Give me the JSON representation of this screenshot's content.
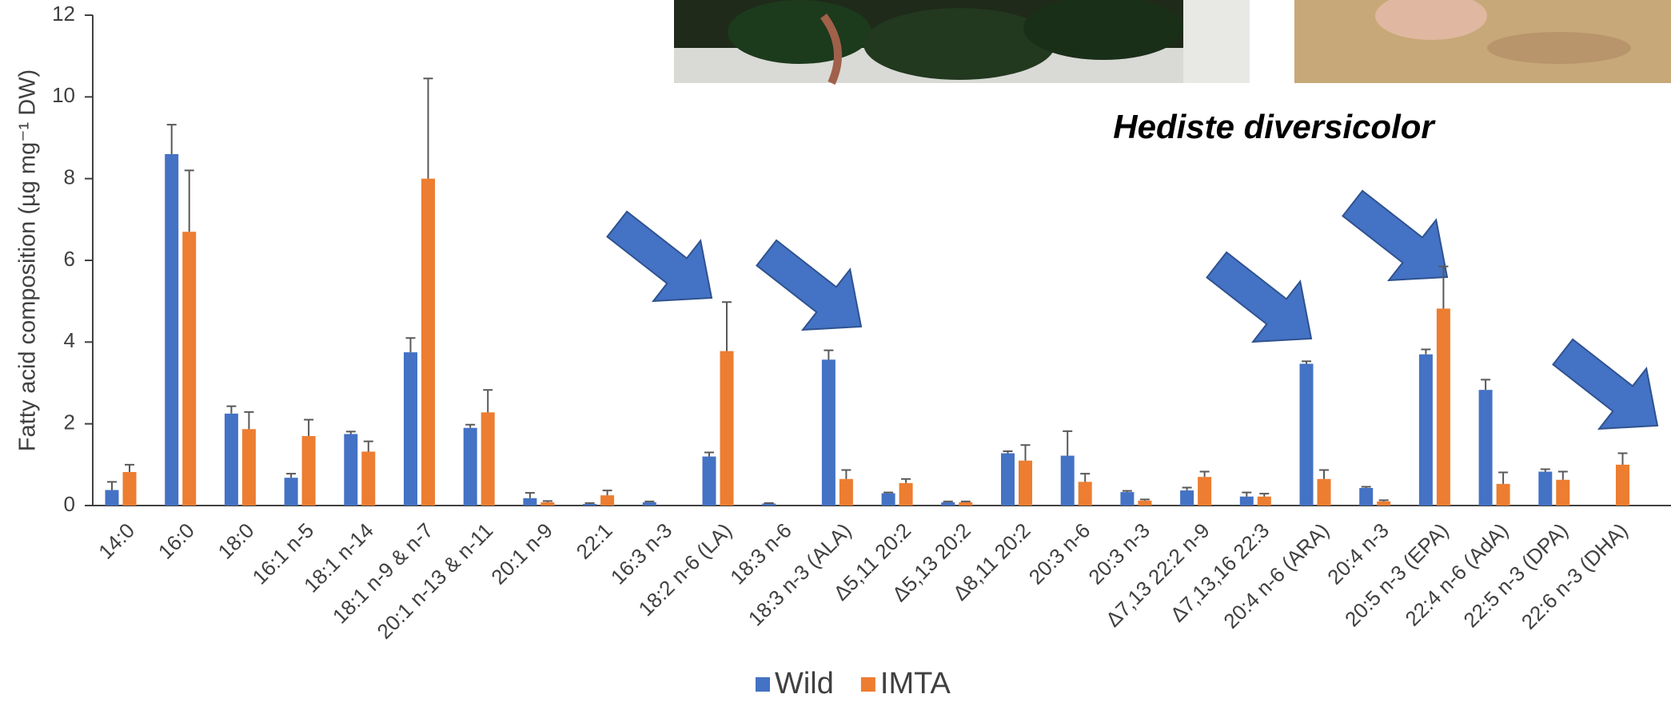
{
  "chart_data": {
    "type": "bar",
    "annotation": "Hediste diversicolor",
    "y_label": "Fatty acid composition (µg mg⁻¹ DW)",
    "categories": [
      "14:0",
      "16:0",
      "18:0",
      "16:1 n-5",
      "18:1 n-14",
      "18:1 n-9 & n-7",
      "20:1 n-13 & n-11",
      "20:1 n-9",
      "22:1",
      "16:3 n-3",
      "18:2 n-6 (LA)",
      "18:3 n-6",
      "18:3 n-3 (ALA)",
      "Δ5,11 20:2",
      "Δ5,13 20:2",
      "Δ8,11 20:2",
      "20:3 n-6",
      "20:3 n-3",
      "Δ7,13 22:2 n-9",
      "Δ7,13,16 22:3",
      "20:4 n-6 (ARA)",
      "20:4 n-3",
      "20:5 n-3 (EPA)",
      "22:4 n-6 (AdA)",
      "22:5 n-3 (DPA)",
      "22:6 n-3 (DHA)"
    ],
    "series": [
      {
        "name": "Wild",
        "color": "#4472c4",
        "values": [
          0.38,
          8.6,
          2.25,
          0.68,
          1.75,
          3.75,
          1.9,
          0.18,
          0.04,
          0.08,
          1.2,
          0.05,
          3.57,
          0.3,
          0.08,
          1.28,
          1.22,
          0.33,
          0.37,
          0.22,
          3.47,
          0.43,
          3.7,
          2.83,
          0.83,
          0
        ],
        "errors": [
          0.2,
          0.72,
          0.18,
          0.1,
          0.06,
          0.35,
          0.08,
          0.13,
          0.02,
          0.02,
          0.1,
          0.01,
          0.23,
          0.02,
          0.02,
          0.05,
          0.6,
          0.03,
          0.07,
          0.1,
          0.06,
          0.03,
          0.12,
          0.25,
          0.06,
          null
        ]
      },
      {
        "name": "IMTA",
        "color": "#ed7d31",
        "values": [
          0.82,
          6.7,
          1.87,
          1.7,
          1.32,
          8.0,
          2.28,
          0.08,
          0.25,
          0,
          3.78,
          0,
          0.65,
          0.55,
          0.08,
          1.1,
          0.58,
          0.12,
          0.7,
          0.22,
          0.65,
          0.1,
          4.82,
          0.53,
          0.63,
          1.0
        ],
        "errors": [
          0.18,
          1.5,
          0.42,
          0.4,
          0.25,
          2.45,
          0.55,
          0.03,
          0.12,
          null,
          1.2,
          null,
          0.22,
          0.1,
          0.02,
          0.38,
          0.2,
          0.03,
          0.13,
          0.07,
          0.22,
          0.03,
          1.03,
          0.28,
          0.2,
          0.28
        ]
      }
    ],
    "ylim": [
      0,
      12
    ],
    "yticks": [
      0,
      2,
      4,
      6,
      8,
      10,
      12
    ],
    "grid": false
  }
}
